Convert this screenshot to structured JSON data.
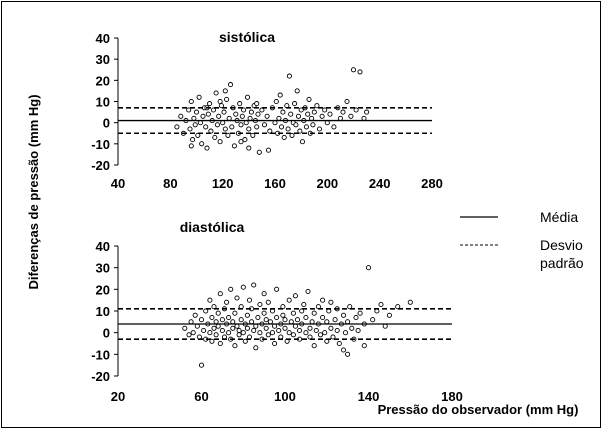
{
  "ylabel": "Diferenças de pressão (mm Hg)",
  "xlabel": "Pressão do observador (mm Hg)",
  "legend": {
    "mean_label": "Média",
    "sd_label_line1": "Desvio",
    "sd_label_line2": "padrão"
  },
  "chart_data": [
    {
      "type": "scatter",
      "title": "sistólica",
      "xlim": [
        40,
        280
      ],
      "ylim": [
        -20,
        40
      ],
      "xticks": [
        "40",
        "80",
        "120",
        "160",
        "200",
        "240",
        "280"
      ],
      "yticks": [
        "40",
        "30",
        "20",
        "10",
        "0",
        "-10",
        "-20"
      ],
      "mean": 1,
      "upper_sd": 7,
      "lower_sd": -5,
      "points": [
        [
          85,
          -2
        ],
        [
          88,
          3
        ],
        [
          90,
          -5
        ],
        [
          92,
          1
        ],
        [
          94,
          6
        ],
        [
          95,
          -3
        ],
        [
          96,
          10
        ],
        [
          97,
          -8
        ],
        [
          98,
          2
        ],
        [
          99,
          -1
        ],
        [
          100,
          5
        ],
        [
          101,
          -6
        ],
        [
          102,
          12
        ],
        [
          103,
          0
        ],
        [
          104,
          -10
        ],
        [
          105,
          3
        ],
        [
          106,
          7
        ],
        [
          107,
          -2
        ],
        [
          108,
          -12
        ],
        [
          109,
          4
        ],
        [
          110,
          9
        ],
        [
          111,
          -4
        ],
        [
          112,
          1
        ],
        [
          113,
          6
        ],
        [
          114,
          -7
        ],
        [
          115,
          14
        ],
        [
          116,
          -1
        ],
        [
          117,
          3
        ],
        [
          118,
          -9
        ],
        [
          119,
          8
        ],
        [
          120,
          0
        ],
        [
          121,
          5
        ],
        [
          122,
          -3
        ],
        [
          123,
          11
        ],
        [
          124,
          -6
        ],
        [
          125,
          2
        ],
        [
          126,
          18
        ],
        [
          127,
          -2
        ],
        [
          128,
          7
        ],
        [
          129,
          -11
        ],
        [
          130,
          4
        ],
        [
          131,
          1
        ],
        [
          132,
          -5
        ],
        [
          133,
          9
        ],
        [
          134,
          -1
        ],
        [
          135,
          3
        ],
        [
          136,
          6
        ],
        [
          137,
          -8
        ],
        [
          138,
          0
        ],
        [
          139,
          12
        ],
        [
          140,
          -3
        ],
        [
          141,
          2
        ],
        [
          142,
          5
        ],
        [
          143,
          -6
        ],
        [
          144,
          8
        ],
        [
          145,
          1
        ],
        [
          146,
          -2
        ],
        [
          147,
          4
        ],
        [
          148,
          -14
        ],
        [
          150,
          6
        ],
        [
          152,
          -1
        ],
        [
          154,
          3
        ],
        [
          156,
          -4
        ],
        [
          158,
          7
        ],
        [
          160,
          0
        ],
        [
          161,
          10
        ],
        [
          162,
          -5
        ],
        [
          163,
          2
        ],
        [
          164,
          13
        ],
        [
          165,
          -2
        ],
        [
          166,
          5
        ],
        [
          167,
          -7
        ],
        [
          168,
          1
        ],
        [
          169,
          8
        ],
        [
          170,
          -3
        ],
        [
          171,
          22
        ],
        [
          172,
          4
        ],
        [
          173,
          -6
        ],
        [
          174,
          0
        ],
        [
          175,
          9
        ],
        [
          176,
          -1
        ],
        [
          177,
          15
        ],
        [
          178,
          3
        ],
        [
          179,
          -4
        ],
        [
          180,
          6
        ],
        [
          181,
          -9
        ],
        [
          182,
          1
        ],
        [
          183,
          7
        ],
        [
          184,
          -2
        ],
        [
          185,
          4
        ],
        [
          186,
          11
        ],
        [
          187,
          -5
        ],
        [
          188,
          2
        ],
        [
          189,
          -1
        ],
        [
          190,
          5
        ],
        [
          192,
          8
        ],
        [
          194,
          -3
        ],
        [
          196,
          3
        ],
        [
          198,
          6
        ],
        [
          200,
          0
        ],
        [
          202,
          4
        ],
        [
          205,
          -2
        ],
        [
          208,
          7
        ],
        [
          210,
          2
        ],
        [
          212,
          5
        ],
        [
          215,
          10
        ],
        [
          218,
          3
        ],
        [
          220,
          25
        ],
        [
          222,
          6
        ],
        [
          225,
          24
        ],
        [
          228,
          2
        ],
        [
          230,
          5
        ],
        [
          140,
          -12
        ],
        [
          155,
          -13
        ],
        [
          108,
          7
        ],
        [
          122,
          15
        ],
        [
          134,
          -9
        ],
        [
          118,
          10
        ],
        [
          146,
          9
        ],
        [
          96,
          -11
        ]
      ]
    },
    {
      "type": "scatter",
      "title": "diastólica",
      "xlim": [
        20,
        180
      ],
      "ylim": [
        -20,
        40
      ],
      "xticks": [
        "20",
        "60",
        "100",
        "140",
        "180"
      ],
      "yticks": [
        "40",
        "30",
        "20",
        "10",
        "0",
        "-10",
        "-20"
      ],
      "mean": 4,
      "upper_sd": 11,
      "lower_sd": -3,
      "points": [
        [
          52,
          2
        ],
        [
          54,
          -1
        ],
        [
          55,
          5
        ],
        [
          56,
          0
        ],
        [
          57,
          8
        ],
        [
          58,
          3
        ],
        [
          59,
          -2
        ],
        [
          60,
          -15
        ],
        [
          60,
          6
        ],
        [
          61,
          1
        ],
        [
          62,
          10
        ],
        [
          62,
          -3
        ],
        [
          63,
          4
        ],
        [
          64,
          15
        ],
        [
          64,
          0
        ],
        [
          65,
          7
        ],
        [
          65,
          -4
        ],
        [
          66,
          2
        ],
        [
          66,
          12
        ],
        [
          67,
          5
        ],
        [
          67,
          -1
        ],
        [
          68,
          9
        ],
        [
          68,
          3
        ],
        [
          69,
          -5
        ],
        [
          69,
          18
        ],
        [
          70,
          6
        ],
        [
          70,
          1
        ],
        [
          71,
          -2
        ],
        [
          71,
          11
        ],
        [
          72,
          4
        ],
        [
          72,
          14
        ],
        [
          73,
          0
        ],
        [
          73,
          7
        ],
        [
          74,
          -3
        ],
        [
          74,
          20
        ],
        [
          75,
          5
        ],
        [
          75,
          2
        ],
        [
          76,
          -6
        ],
        [
          76,
          9
        ],
        [
          77,
          3
        ],
        [
          77,
          16
        ],
        [
          78,
          1
        ],
        [
          78,
          -1
        ],
        [
          79,
          6
        ],
        [
          79,
          12
        ],
        [
          80,
          0
        ],
        [
          80,
          21
        ],
        [
          81,
          4
        ],
        [
          81,
          -4
        ],
        [
          82,
          8
        ],
        [
          82,
          2
        ],
        [
          83,
          15
        ],
        [
          83,
          -2
        ],
        [
          84,
          5
        ],
        [
          84,
          11
        ],
        [
          85,
          1
        ],
        [
          85,
          22
        ],
        [
          86,
          3
        ],
        [
          86,
          -7
        ],
        [
          87,
          7
        ],
        [
          88,
          0
        ],
        [
          88,
          13
        ],
        [
          89,
          4
        ],
        [
          89,
          -3
        ],
        [
          90,
          9
        ],
        [
          90,
          18
        ],
        [
          91,
          2
        ],
        [
          91,
          6
        ],
        [
          92,
          -1
        ],
        [
          92,
          14
        ],
        [
          93,
          5
        ],
        [
          94,
          0
        ],
        [
          94,
          10
        ],
        [
          95,
          3
        ],
        [
          95,
          -5
        ],
        [
          96,
          7
        ],
        [
          96,
          20
        ],
        [
          97,
          1
        ],
        [
          98,
          4
        ],
        [
          98,
          -2
        ],
        [
          99,
          8
        ],
        [
          99,
          12
        ],
        [
          100,
          2
        ],
        [
          100,
          6
        ],
        [
          101,
          -4
        ],
        [
          102,
          15
        ],
        [
          102,
          0
        ],
        [
          103,
          5
        ],
        [
          104,
          9
        ],
        [
          104,
          -1
        ],
        [
          105,
          3
        ],
        [
          105,
          17
        ],
        [
          106,
          6
        ],
        [
          107,
          1
        ],
        [
          107,
          -3
        ],
        [
          108,
          10
        ],
        [
          108,
          4
        ],
        [
          109,
          13
        ],
        [
          110,
          0
        ],
        [
          110,
          7
        ],
        [
          111,
          19
        ],
        [
          112,
          2
        ],
        [
          112,
          -2
        ],
        [
          113,
          5
        ],
        [
          114,
          9
        ],
        [
          114,
          -6
        ],
        [
          115,
          1
        ],
        [
          116,
          12
        ],
        [
          116,
          4
        ],
        [
          117,
          -1
        ],
        [
          118,
          7
        ],
        [
          118,
          15
        ],
        [
          119,
          0
        ],
        [
          120,
          5
        ],
        [
          120,
          -4
        ],
        [
          121,
          10
        ],
        [
          122,
          2
        ],
        [
          122,
          14
        ],
        [
          123,
          -2
        ],
        [
          124,
          6
        ],
        [
          125,
          1
        ],
        [
          125,
          11
        ],
        [
          126,
          -5
        ],
        [
          127,
          4
        ],
        [
          128,
          8
        ],
        [
          128,
          -8
        ],
        [
          129,
          0
        ],
        [
          130,
          5
        ],
        [
          130,
          -10
        ],
        [
          131,
          12
        ],
        [
          132,
          2
        ],
        [
          133,
          -3
        ],
        [
          134,
          7
        ],
        [
          135,
          1
        ],
        [
          136,
          9
        ],
        [
          138,
          4
        ],
        [
          138,
          -6
        ],
        [
          140,
          30
        ],
        [
          142,
          6
        ],
        [
          144,
          10
        ],
        [
          146,
          13
        ],
        [
          148,
          3
        ],
        [
          150,
          8
        ],
        [
          154,
          12
        ],
        [
          160,
          14
        ]
      ]
    }
  ]
}
